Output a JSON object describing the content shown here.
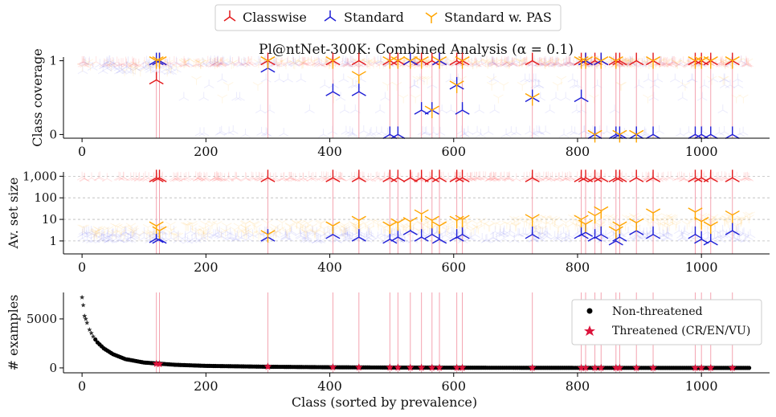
{
  "title": "Pl@ntNet-300K: Combined Analysis (α = 0.1)",
  "legend_top": [
    {
      "label": "Classwise",
      "color": "#e31a1c"
    },
    {
      "label": "Standard",
      "color": "#1f1fd6"
    },
    {
      "label": "Standard w. PAS",
      "color": "#ffa500"
    }
  ],
  "threatened_color": "#f4a3b0",
  "chart_data": [
    {
      "type": "scatter",
      "ylabel": "Class coverage",
      "xlim": [
        -30,
        1110
      ],
      "ylim": [
        -0.05,
        1.05
      ],
      "xticks": [
        0,
        200,
        400,
        600,
        800,
        1000
      ],
      "yticks": [
        0,
        1
      ],
      "ytick_labels": [
        "0",
        "1"
      ],
      "threatened_classes": [
        120,
        125,
        300,
        405,
        447,
        497,
        510,
        530,
        548,
        565,
        577,
        605,
        614,
        727,
        806,
        813,
        828,
        838,
        862,
        868,
        895,
        922,
        990,
        1000,
        1015,
        1050
      ],
      "series": [
        {
          "name": "Classwise",
          "color": "#e31a1c",
          "points": [
            [
              120,
              0.74
            ],
            [
              125,
              1.0
            ],
            [
              300,
              1.0
            ],
            [
              405,
              1.0
            ],
            [
              447,
              1.0
            ],
            [
              497,
              1.0
            ],
            [
              510,
              1.0
            ],
            [
              530,
              1.0
            ],
            [
              548,
              1.0
            ],
            [
              565,
              1.0
            ],
            [
              577,
              1.0
            ],
            [
              605,
              1.0
            ],
            [
              614,
              1.0
            ],
            [
              727,
              1.0
            ],
            [
              806,
              1.0
            ],
            [
              813,
              1.0
            ],
            [
              828,
              1.0
            ],
            [
              838,
              1.0
            ],
            [
              862,
              1.0
            ],
            [
              868,
              1.0
            ],
            [
              895,
              1.0
            ],
            [
              922,
              1.0
            ],
            [
              990,
              1.0
            ],
            [
              1000,
              1.0
            ],
            [
              1015,
              1.0
            ],
            [
              1050,
              1.0
            ]
          ]
        },
        {
          "name": "Standard",
          "color": "#1f1fd6",
          "points": [
            [
              120,
              1.0
            ],
            [
              125,
              1.0
            ],
            [
              300,
              0.9
            ],
            [
              405,
              0.58
            ],
            [
              447,
              0.58
            ],
            [
              497,
              0.0
            ],
            [
              510,
              0.0
            ],
            [
              530,
              1.0
            ],
            [
              548,
              0.33
            ],
            [
              565,
              0.33
            ],
            [
              577,
              1.0
            ],
            [
              605,
              0.67
            ],
            [
              614,
              0.33
            ],
            [
              727,
              0.5
            ],
            [
              806,
              0.5
            ],
            [
              813,
              1.0
            ],
            [
              828,
              0.0
            ],
            [
              838,
              1.0
            ],
            [
              862,
              0.0
            ],
            [
              868,
              0.0
            ],
            [
              895,
              0.0
            ],
            [
              922,
              0.0
            ],
            [
              990,
              0.0
            ],
            [
              1000,
              0.0
            ],
            [
              1015,
              0.0
            ],
            [
              1050,
              0.0
            ]
          ]
        },
        {
          "name": "Standard w. PAS",
          "color": "#ffa500",
          "points": [
            [
              120,
              1.0
            ],
            [
              125,
              1.0
            ],
            [
              300,
              1.0
            ],
            [
              405,
              1.0
            ],
            [
              447,
              0.8
            ],
            [
              497,
              1.0
            ],
            [
              510,
              1.0
            ],
            [
              530,
              1.0
            ],
            [
              548,
              1.0
            ],
            [
              565,
              0.33
            ],
            [
              577,
              1.0
            ],
            [
              605,
              0.67
            ],
            [
              614,
              1.0
            ],
            [
              727,
              0.5
            ],
            [
              806,
              1.0
            ],
            [
              813,
              1.0
            ],
            [
              828,
              0.0
            ],
            [
              838,
              1.0
            ],
            [
              862,
              1.0
            ],
            [
              868,
              0.0
            ],
            [
              895,
              0.0
            ],
            [
              922,
              1.0
            ],
            [
              990,
              1.0
            ],
            [
              1000,
              1.0
            ],
            [
              1015,
              1.0
            ],
            [
              1050,
              1.0
            ]
          ]
        }
      ]
    },
    {
      "type": "scatter",
      "ylabel": "Av. set size",
      "yscale": "log",
      "xlim": [
        -30,
        1110
      ],
      "ylim_log10": [
        -0.6,
        3.2
      ],
      "xticks": [
        0,
        200,
        400,
        600,
        800,
        1000
      ],
      "yticks": [
        1,
        10,
        100,
        1000
      ],
      "ytick_labels": [
        "1",
        "10",
        "100",
        "1,000"
      ],
      "threatened_classes": [
        120,
        125,
        300,
        405,
        447,
        497,
        510,
        530,
        548,
        565,
        577,
        605,
        614,
        727,
        806,
        813,
        828,
        838,
        862,
        868,
        895,
        922,
        990,
        1000,
        1015,
        1050
      ],
      "series": [
        {
          "name": "Classwise",
          "color": "#e31a1c",
          "points": [
            [
              120,
              850
            ],
            [
              125,
              850
            ],
            [
              300,
              850
            ],
            [
              405,
              850
            ],
            [
              447,
              850
            ],
            [
              497,
              850
            ],
            [
              510,
              850
            ],
            [
              530,
              850
            ],
            [
              548,
              850
            ],
            [
              565,
              850
            ],
            [
              577,
              850
            ],
            [
              605,
              850
            ],
            [
              614,
              850
            ],
            [
              727,
              850
            ],
            [
              806,
              850
            ],
            [
              813,
              850
            ],
            [
              828,
              850
            ],
            [
              838,
              850
            ],
            [
              862,
              850
            ],
            [
              868,
              850
            ],
            [
              895,
              850
            ],
            [
              922,
              850
            ],
            [
              990,
              850
            ],
            [
              1000,
              850
            ],
            [
              1015,
              850
            ],
            [
              1050,
              850
            ]
          ]
        },
        {
          "name": "Standard",
          "color": "#1f1fd6",
          "points": [
            [
              120,
              1.3
            ],
            [
              125,
              1.2
            ],
            [
              300,
              1.5
            ],
            [
              405,
              2.0
            ],
            [
              447,
              1.5
            ],
            [
              497,
              1.2
            ],
            [
              510,
              1.5
            ],
            [
              530,
              3.0
            ],
            [
              548,
              1.5
            ],
            [
              565,
              2.0
            ],
            [
              577,
              1.2
            ],
            [
              605,
              1.5
            ],
            [
              614,
              2.0
            ],
            [
              727,
              2.0
            ],
            [
              806,
              2.0
            ],
            [
              813,
              2.5
            ],
            [
              828,
              1.5
            ],
            [
              838,
              2.0
            ],
            [
              862,
              1.0
            ],
            [
              868,
              1.5
            ],
            [
              895,
              3.0
            ],
            [
              922,
              2.0
            ],
            [
              990,
              2.0
            ],
            [
              1000,
              1.2
            ],
            [
              1015,
              1.0
            ],
            [
              1050,
              3.0
            ]
          ]
        },
        {
          "name": "Standard w. PAS",
          "color": "#ffa500",
          "points": [
            [
              120,
              5.0
            ],
            [
              125,
              3.0
            ],
            [
              300,
              2.0
            ],
            [
              405,
              5.0
            ],
            [
              447,
              9.0
            ],
            [
              497,
              5.0
            ],
            [
              510,
              7.0
            ],
            [
              530,
              8.0
            ],
            [
              548,
              18.0
            ],
            [
              565,
              9.0
            ],
            [
              577,
              5.0
            ],
            [
              605,
              9.0
            ],
            [
              614,
              10.0
            ],
            [
              727,
              11.0
            ],
            [
              806,
              10.0
            ],
            [
              813,
              6.0
            ],
            [
              828,
              15.0
            ],
            [
              838,
              25.0
            ],
            [
              862,
              3.0
            ],
            [
              868,
              5.0
            ],
            [
              895,
              7.0
            ],
            [
              922,
              20.0
            ],
            [
              990,
              22.0
            ],
            [
              1000,
              8.0
            ],
            [
              1015,
              5.0
            ],
            [
              1050,
              16.0
            ]
          ]
        }
      ]
    },
    {
      "type": "scatter",
      "ylabel": "# examples",
      "xlabel": "Class (sorted by prevalence)",
      "xlim": [
        -30,
        1110
      ],
      "ylim": [
        -500,
        7700
      ],
      "xticks": [
        0,
        200,
        400,
        600,
        800,
        1000
      ],
      "yticks": [
        0,
        5000
      ],
      "ytick_labels": [
        "0",
        "5000"
      ],
      "threatened_classes": [
        120,
        125,
        300,
        405,
        447,
        497,
        510,
        530,
        548,
        565,
        577,
        605,
        614,
        727,
        806,
        813,
        828,
        838,
        862,
        868,
        895,
        922,
        990,
        1000,
        1015,
        1050
      ],
      "legend": [
        "Non-threatened",
        "Threatened (CR/EN/VU)"
      ],
      "series": [
        {
          "name": "Non-threatened",
          "color": "#000000",
          "points": [
            [
              0,
              7200
            ],
            [
              2,
              6400
            ],
            [
              4,
              5300
            ],
            [
              6,
              5000
            ],
            [
              8,
              4600
            ],
            [
              12,
              3900
            ],
            [
              18,
              3200
            ],
            [
              25,
              2600
            ],
            [
              35,
              2000
            ],
            [
              50,
              1400
            ],
            [
              70,
              900
            ],
            [
              100,
              550
            ],
            [
              150,
              320
            ],
            [
              200,
              210
            ],
            [
              300,
              120
            ],
            [
              400,
              70
            ],
            [
              500,
              40
            ],
            [
              600,
              25
            ],
            [
              700,
              15
            ],
            [
              800,
              9
            ],
            [
              900,
              5
            ],
            [
              1000,
              3
            ],
            [
              1080,
              1
            ]
          ]
        },
        {
          "name": "Threatened (CR/EN/VU)",
          "color": "#dc143c",
          "points": [
            [
              120,
              420
            ],
            [
              125,
              400
            ],
            [
              300,
              130
            ],
            [
              405,
              70
            ],
            [
              447,
              55
            ],
            [
              497,
              45
            ],
            [
              510,
              40
            ],
            [
              530,
              35
            ],
            [
              548,
              30
            ],
            [
              565,
              28
            ],
            [
              577,
              26
            ],
            [
              605,
              24
            ],
            [
              614,
              22
            ],
            [
              727,
              14
            ],
            [
              806,
              9
            ],
            [
              813,
              9
            ],
            [
              828,
              8
            ],
            [
              838,
              8
            ],
            [
              862,
              7
            ],
            [
              868,
              6
            ],
            [
              895,
              5
            ],
            [
              922,
              5
            ],
            [
              990,
              3
            ],
            [
              1000,
              3
            ],
            [
              1015,
              3
            ],
            [
              1050,
              2
            ]
          ]
        }
      ]
    }
  ]
}
